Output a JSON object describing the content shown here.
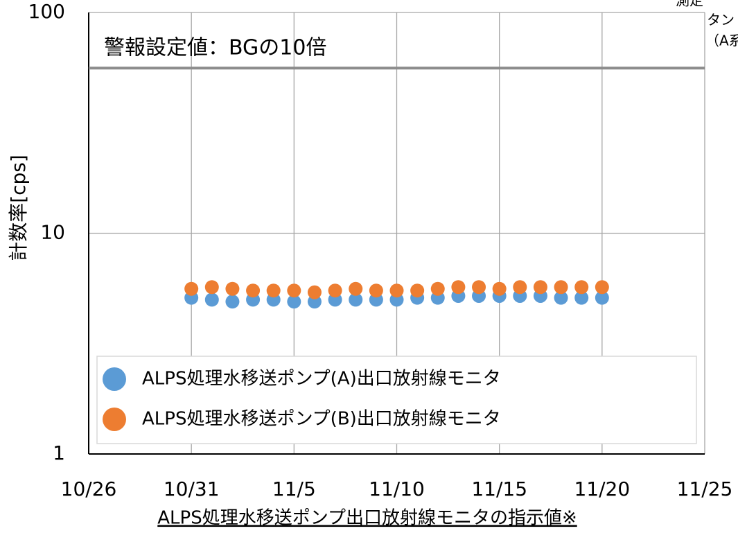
{
  "chart_data": {
    "type": "scatter",
    "title": "ALPS処理水移送ポンプ出口放射線モニタの指示値※",
    "y_label": "計数率[cps]",
    "log_y": true,
    "grid": true,
    "legend_position": "bottom",
    "xlim": [
      "10/26",
      "11/25"
    ],
    "xticks": [
      "10/26",
      "10/31",
      "11/5",
      "11/10",
      "11/15",
      "11/20",
      "11/25"
    ],
    "ylim": [
      1,
      100
    ],
    "yticks": [
      1,
      10,
      100
    ],
    "x": [
      "10/31",
      "11/1",
      "11/2",
      "11/3",
      "11/4",
      "11/5",
      "11/6",
      "11/7",
      "11/8",
      "11/9",
      "11/10",
      "11/11",
      "11/12",
      "11/13",
      "11/14",
      "11/15",
      "11/16",
      "11/17",
      "11/18",
      "11/19",
      "11/20"
    ],
    "series": [
      {
        "name": "ALPS処理水移送ポンプ(A)出口放射線モニタ",
        "color": "#5b9bd5",
        "values": [
          5.1,
          5.0,
          4.9,
          5.0,
          5.0,
          4.9,
          4.9,
          5.0,
          5.0,
          5.0,
          5.0,
          5.1,
          5.1,
          5.2,
          5.2,
          5.2,
          5.2,
          5.2,
          5.1,
          5.1,
          5.1
        ]
      },
      {
        "name": "ALPS処理水移送ポンプ(B)出口放射線モニタ",
        "color": "#ed7d31",
        "values": [
          5.6,
          5.7,
          5.6,
          5.5,
          5.5,
          5.5,
          5.4,
          5.5,
          5.6,
          5.5,
          5.5,
          5.5,
          5.6,
          5.7,
          5.7,
          5.6,
          5.7,
          5.7,
          5.7,
          5.7,
          5.7
        ]
      }
    ],
    "threshold": {
      "value": 56,
      "label": "警報設定値：BGの10倍",
      "color": "#8c8c8c"
    },
    "annotations": [
      "測定",
      "タン",
      "（A系"
    ]
  }
}
